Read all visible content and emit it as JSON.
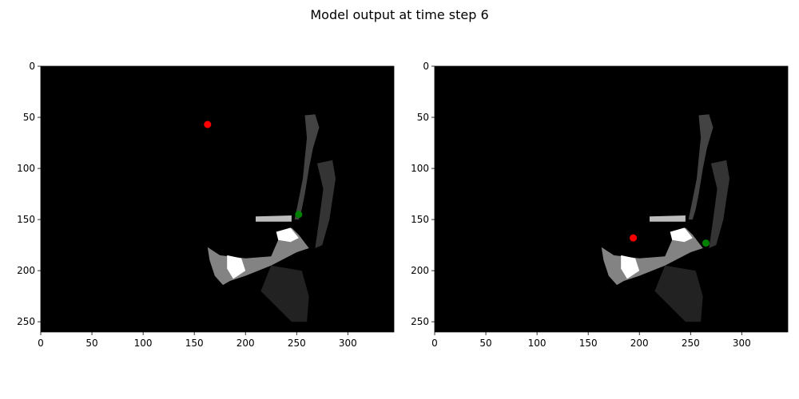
{
  "figure": {
    "suptitle": "Model output at time step 6"
  },
  "chart_data": [
    {
      "type": "scatter",
      "subtype": "image-with-points",
      "title": "",
      "xlabel": "",
      "ylabel": "",
      "xlim": [
        0,
        345
      ],
      "ylim": [
        260,
        0
      ],
      "xticks": [
        0,
        50,
        100,
        150,
        200,
        250,
        300
      ],
      "yticks": [
        0,
        50,
        100,
        150,
        200,
        250
      ],
      "background": "#000000",
      "series": [
        {
          "color": "#ff0000",
          "points": [
            [
              163,
              57
            ]
          ]
        },
        {
          "color": "#008000",
          "points": [
            [
              252,
              145
            ]
          ]
        }
      ]
    },
    {
      "type": "scatter",
      "subtype": "image-with-points",
      "title": "",
      "xlabel": "",
      "ylabel": "",
      "xlim": [
        0,
        345
      ],
      "ylim": [
        260,
        0
      ],
      "xticks": [
        0,
        50,
        100,
        150,
        200,
        250,
        300
      ],
      "yticks": [
        0,
        50,
        100,
        150,
        200,
        250
      ],
      "background": "#000000",
      "series": [
        {
          "color": "#ff0000",
          "points": [
            [
              194,
              168
            ]
          ]
        },
        {
          "color": "#008000",
          "points": [
            [
              265,
              173
            ]
          ]
        }
      ]
    }
  ]
}
